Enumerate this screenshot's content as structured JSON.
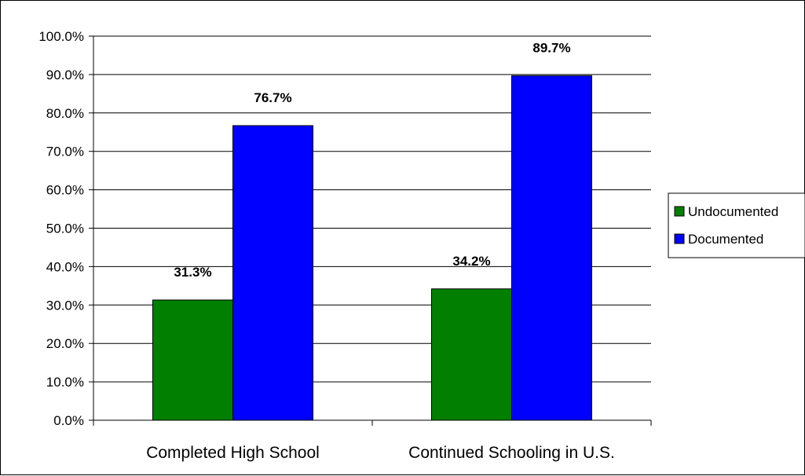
{
  "chart_data": {
    "type": "bar",
    "categories": [
      "Completed High School",
      "Continued Schooling in U.S."
    ],
    "series": [
      {
        "name": "Undocumented",
        "values": [
          31.3,
          34.2
        ],
        "color": "#007f00"
      },
      {
        "name": "Documented",
        "values": [
          76.7,
          89.7
        ],
        "color": "#0000ff"
      }
    ],
    "data_labels": [
      [
        "31.3%",
        "34.2%"
      ],
      [
        "76.7%",
        "89.7%"
      ]
    ],
    "yticks": [
      "0.0%",
      "10.0%",
      "20.0%",
      "30.0%",
      "40.0%",
      "50.0%",
      "60.0%",
      "70.0%",
      "80.0%",
      "90.0%",
      "100.0%"
    ],
    "ylim": [
      0,
      100
    ],
    "grid": true,
    "legend_position": "right",
    "title": "",
    "xlabel": "",
    "ylabel": ""
  }
}
